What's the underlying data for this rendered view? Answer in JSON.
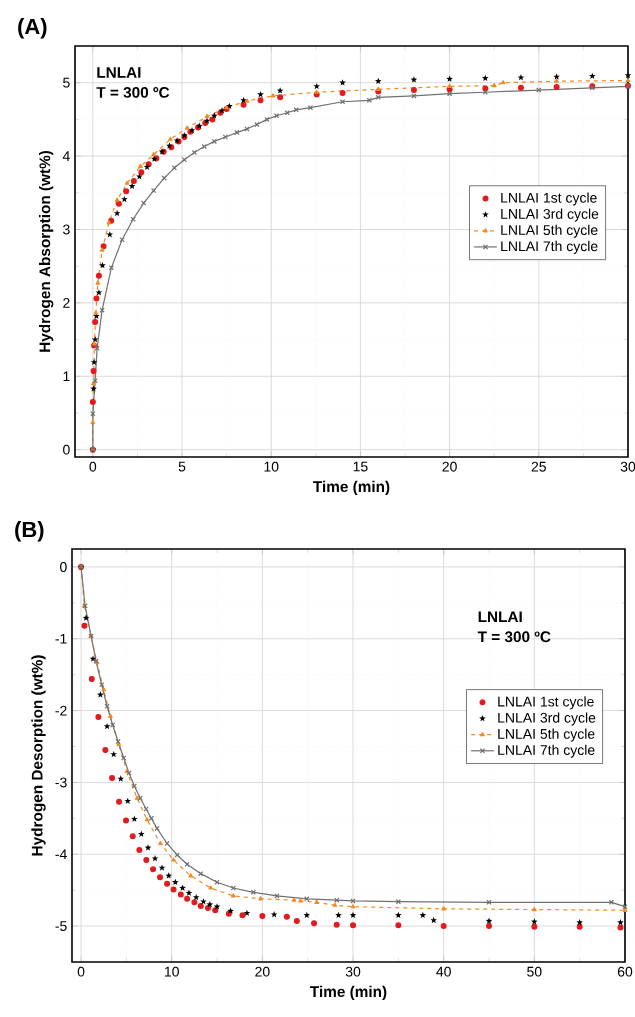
{
  "chart_data": [
    {
      "type": "line",
      "title": "(A)",
      "xlabel": "Time (min)",
      "ylabel": "Hydrogen Absorption (wt%)",
      "xlim": [
        -1,
        30
      ],
      "ylim": [
        -0.1,
        5.5
      ],
      "xticks": [
        0,
        5,
        10,
        15,
        20,
        25,
        30
      ],
      "yticks": [
        0,
        1,
        2,
        3,
        4,
        5
      ],
      "grid": true,
      "legend": "right",
      "annotations": [
        "LNLAI",
        "T = 300 ºC"
      ],
      "series": [
        {
          "name": "LNLAI 1st cycle",
          "type": "scatter",
          "color": "#e31a1c",
          "marker": "circle",
          "x": [
            0,
            0,
            0.04,
            0.07,
            0.13,
            0.2,
            0.34,
            0.6,
            1.03,
            1.46,
            1.87,
            2.3,
            2.72,
            3.13,
            3.56,
            3.97,
            4.4,
            4.81,
            5.13,
            5.47,
            5.9,
            6.3,
            6.7,
            7.15,
            7.5,
            8.45,
            9.4,
            10.5,
            12.55,
            14,
            16,
            18,
            20,
            22,
            24,
            26,
            28,
            30
          ],
          "values": [
            0,
            0.65,
            1.07,
            1.42,
            1.74,
            2.06,
            2.37,
            2.77,
            3.12,
            3.35,
            3.52,
            3.66,
            3.78,
            3.89,
            3.97,
            4.06,
            4.12,
            4.2,
            4.26,
            4.33,
            4.39,
            4.45,
            4.5,
            4.59,
            4.64,
            4.7,
            4.76,
            4.8,
            4.84,
            4.86,
            4.88,
            4.9,
            4.91,
            4.92,
            4.93,
            4.94,
            4.95,
            4.96
          ]
        },
        {
          "name": "LNLAI 3rd cycle",
          "type": "scatter",
          "color": "#000000",
          "marker": "star",
          "x": [
            0,
            0.04,
            0.07,
            0.13,
            0.2,
            0.34,
            0.54,
            0.95,
            1.36,
            1.77,
            2.2,
            2.61,
            3.04,
            3.45,
            3.88,
            4.29,
            4.72,
            5.13,
            5.56,
            5.97,
            6.4,
            6.81,
            7.24,
            7.65,
            8.45,
            9.4,
            10.5,
            12.55,
            14,
            16,
            18,
            20,
            22,
            24,
            26,
            28,
            30
          ],
          "values": [
            0,
            0.83,
            1.19,
            1.5,
            1.82,
            2.14,
            2.51,
            2.93,
            3.22,
            3.41,
            3.59,
            3.72,
            3.85,
            3.96,
            4.06,
            4.14,
            4.21,
            4.28,
            4.35,
            4.41,
            4.48,
            4.55,
            4.62,
            4.68,
            4.76,
            4.84,
            4.89,
            4.95,
            5.0,
            5.02,
            5.04,
            5.05,
            5.06,
            5.07,
            5.08,
            5.09,
            5.1
          ]
        },
        {
          "name": "LNLAI 5th cycle",
          "color": "#f08a24",
          "marker": "triangle",
          "line_style": "dashed",
          "x": [
            0,
            0,
            0.04,
            0.09,
            0.17,
            0.28,
            0.52,
            0.9,
            1.36,
            1.92,
            2.67,
            3.41,
            4.35,
            5.28,
            6.4,
            7.5,
            8.64,
            10.1,
            12.55,
            16,
            20,
            22.5,
            23,
            26,
            30
          ],
          "values": [
            0,
            0.37,
            0.9,
            1.44,
            1.86,
            2.27,
            2.72,
            3.09,
            3.4,
            3.63,
            3.86,
            4.02,
            4.23,
            4.38,
            4.54,
            4.66,
            4.75,
            4.82,
            4.87,
            4.91,
            4.95,
            4.96,
            5.0,
            5.02,
            5.03
          ]
        },
        {
          "name": "LNLAI 7th cycle",
          "color": "#707070",
          "marker": "cross",
          "line_style": "solid",
          "x": [
            0,
            0,
            0.13,
            0.24,
            0.52,
            1.04,
            1.64,
            2.26,
            2.85,
            3.41,
            4.0,
            4.57,
            5.13,
            5.69,
            6.25,
            6.81,
            7.43,
            8.08,
            8.64,
            9.2,
            9.76,
            10.3,
            10.9,
            11.4,
            12.2,
            14,
            15.5,
            16,
            18,
            20,
            22,
            25,
            28,
            30
          ],
          "values": [
            0,
            0.49,
            0.94,
            1.38,
            1.9,
            2.48,
            2.86,
            3.14,
            3.36,
            3.53,
            3.7,
            3.84,
            3.95,
            4.05,
            4.13,
            4.2,
            4.26,
            4.32,
            4.37,
            4.43,
            4.5,
            4.55,
            4.59,
            4.63,
            4.66,
            4.74,
            4.76,
            4.8,
            4.82,
            4.85,
            4.87,
            4.9,
            4.93,
            4.95
          ]
        }
      ]
    },
    {
      "type": "line",
      "title": "(B)",
      "xlabel": "Time (min)",
      "ylabel": "Hydrogen Desorption (wt%)",
      "xlim": [
        -1,
        60
      ],
      "ylim": [
        -5.5,
        0.25
      ],
      "xticks": [
        0,
        10,
        20,
        30,
        40,
        50,
        60
      ],
      "yticks": [
        -5,
        -4,
        -3,
        -2,
        -1,
        0
      ],
      "grid": true,
      "legend": "right",
      "annotations": [
        "LNLAI",
        "T = 300 ºC"
      ],
      "series": [
        {
          "name": "LNLAI 1st cycle",
          "type": "scatter",
          "color": "#e31a1c",
          "marker": "circle",
          "x": [
            0,
            0.37,
            1.18,
            1.91,
            2.68,
            3.42,
            4.19,
            4.96,
            5.7,
            6.43,
            7.2,
            7.94,
            8.71,
            9.49,
            10.2,
            11.0,
            11.7,
            12.5,
            13.2,
            14.0,
            14.8,
            16.3,
            17.8,
            20,
            22.7,
            23.8,
            25.7,
            28.2,
            30,
            35,
            40,
            45,
            50,
            55,
            59.5
          ],
          "values": [
            0,
            -0.82,
            -1.56,
            -2.09,
            -2.55,
            -2.94,
            -3.27,
            -3.53,
            -3.75,
            -3.94,
            -4.08,
            -4.21,
            -4.32,
            -4.41,
            -4.49,
            -4.56,
            -4.62,
            -4.67,
            -4.72,
            -4.75,
            -4.78,
            -4.83,
            -4.85,
            -4.86,
            -4.87,
            -4.93,
            -4.96,
            -4.98,
            -4.99,
            -4.99,
            -5.0,
            -5.0,
            -5.01,
            -5.01,
            -5.02
          ]
        },
        {
          "name": "LNLAI 3rd cycle",
          "type": "scatter",
          "color": "#000000",
          "marker": "star",
          "x": [
            0,
            0.55,
            1.32,
            2.13,
            2.87,
            3.6,
            4.38,
            5.15,
            5.88,
            6.65,
            7.39,
            8.16,
            8.93,
            9.67,
            10.4,
            11.2,
            11.9,
            12.7,
            13.5,
            14.2,
            15.0,
            16.5,
            18.3,
            21.3,
            24.9,
            28.4,
            30,
            35,
            37.7,
            38.9,
            45,
            50,
            55,
            59.5
          ],
          "values": [
            0,
            -0.71,
            -1.28,
            -1.78,
            -2.22,
            -2.61,
            -2.95,
            -3.26,
            -3.51,
            -3.72,
            -3.91,
            -4.06,
            -4.19,
            -4.3,
            -4.39,
            -4.47,
            -4.54,
            -4.6,
            -4.66,
            -4.7,
            -4.73,
            -4.79,
            -4.82,
            -4.84,
            -4.85,
            -4.85,
            -4.85,
            -4.85,
            -4.85,
            -4.92,
            -4.93,
            -4.94,
            -4.95,
            -4.95
          ]
        },
        {
          "name": "LNLAI 5th cycle",
          "color": "#f08a24",
          "marker": "triangle",
          "line_style": "dashed",
          "x": [
            0,
            0.37,
            1.1,
            1.76,
            2.5,
            3.24,
            4.15,
            5.07,
            6.18,
            7.28,
            8.75,
            10.2,
            12.1,
            14.3,
            16.8,
            19.8,
            23.5,
            24.2,
            26,
            28,
            30,
            40,
            50,
            60
          ],
          "values": [
            0,
            -0.54,
            -0.96,
            -1.33,
            -1.71,
            -2.08,
            -2.47,
            -2.85,
            -3.22,
            -3.52,
            -3.85,
            -4.08,
            -4.3,
            -4.47,
            -4.58,
            -4.62,
            -4.64,
            -4.65,
            -4.67,
            -4.71,
            -4.73,
            -4.76,
            -4.77,
            -4.78
          ]
        },
        {
          "name": "LNLAI 7th cycle",
          "color": "#707070",
          "marker": "cross",
          "line_style": "solid",
          "x": [
            0,
            0.44,
            1.1,
            1.65,
            2.28,
            2.87,
            3.49,
            4.08,
            4.71,
            5.29,
            5.88,
            6.54,
            7.17,
            7.76,
            8.38,
            9.49,
            10.6,
            11.7,
            13.2,
            15.0,
            16.8,
            19.0,
            21.6,
            24.9,
            28.2,
            30,
            35,
            45,
            58.5,
            60
          ],
          "values": [
            0,
            -0.54,
            -0.96,
            -1.31,
            -1.64,
            -1.94,
            -2.2,
            -2.43,
            -2.66,
            -2.87,
            -3.05,
            -3.22,
            -3.37,
            -3.5,
            -3.64,
            -3.85,
            -4.01,
            -4.14,
            -4.27,
            -4.39,
            -4.47,
            -4.53,
            -4.58,
            -4.62,
            -4.64,
            -4.65,
            -4.66,
            -4.67,
            -4.67,
            -4.73
          ]
        }
      ]
    }
  ]
}
